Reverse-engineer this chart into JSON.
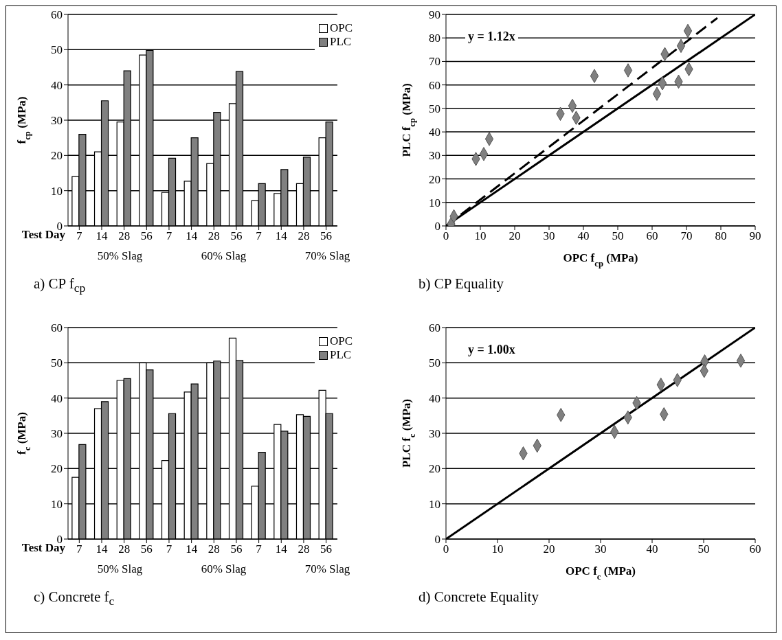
{
  "chart_data": [
    {
      "type": "bar",
      "title": "a) CP f$_{cp}$",
      "xlabel": "Test Day",
      "ylabel": "f$_{cp}$ (MPa)",
      "categories": [
        "7",
        "14",
        "28",
        "56",
        "7",
        "14",
        "28",
        "56",
        "7",
        "14",
        "28",
        "56"
      ],
      "series": [
        {
          "name": "OPC",
          "color": "#ffffff",
          "values": [
            14,
            21,
            29.5,
            48.5,
            9.5,
            12.7,
            17.7,
            34.7,
            7.2,
            9.2,
            12,
            25
          ]
        },
        {
          "name": "PLC",
          "color": "#808080",
          "values": [
            26,
            35.5,
            44,
            49.8,
            19.2,
            25,
            32.2,
            43.8,
            12,
            16,
            19.5,
            29.5
          ]
        }
      ],
      "annotations": [
        "50% Slag",
        "60% Slag",
        "70% Slag"
      ],
      "ylim": [
        0,
        60
      ],
      "yticks": [
        0,
        10,
        20,
        30,
        40,
        50,
        60
      ],
      "grid": "y",
      "legend": "top right"
    },
    {
      "type": "scatter",
      "title": "b) CP Equality",
      "xlabel": "OPC f$_{cp}$ (MPa)",
      "ylabel": "PLC f$_{cp}$ (MPa)",
      "series": [
        {
          "type": "scatter",
          "color": "#808080",
          "marker": "diamond",
          "x": [
            1.5,
            2.3,
            8.7,
            11,
            12.6,
            33.3,
            36.8,
            37.9,
            43.2,
            53,
            61.4,
            63,
            63.7,
            67.7,
            68.4,
            70.4,
            70.7
          ],
          "values": [
            0.8,
            4.1,
            28.5,
            30.6,
            37,
            47.7,
            51.1,
            46,
            63.8,
            66.2,
            56.2,
            60.7,
            73.1,
            61.4,
            76.6,
            83,
            66.7
          ]
        },
        {
          "type": "line",
          "color": "#000000",
          "line_style": "solid",
          "x": [
            0,
            90
          ],
          "values": [
            0,
            90
          ]
        },
        {
          "type": "line",
          "color": "#000000",
          "line_style": "dashed",
          "x": [
            0,
            79
          ],
          "values": [
            0,
            88.5
          ]
        }
      ],
      "annotations": [
        "y = 1.12x"
      ],
      "xlim": [
        0,
        90
      ],
      "xticks": [
        0,
        10,
        20,
        30,
        40,
        50,
        60,
        70,
        80,
        90
      ],
      "ylim": [
        0,
        90
      ],
      "yticks": [
        0,
        10,
        20,
        30,
        40,
        50,
        60,
        70,
        80,
        90
      ],
      "grid": "y"
    },
    {
      "type": "bar",
      "title": "c) Concrete f$_{c}$",
      "xlabel": "Test Day",
      "ylabel": "f$_{c}$ (MPa)",
      "categories": [
        "7",
        "14",
        "28",
        "56",
        "7",
        "14",
        "28",
        "56",
        "7",
        "14",
        "28",
        "56"
      ],
      "series": [
        {
          "name": "OPC",
          "color": "#ffffff",
          "values": [
            17.5,
            37,
            45,
            50,
            22.3,
            41.7,
            50,
            57,
            15,
            32.5,
            35.3,
            42.2
          ]
        },
        {
          "name": "PLC",
          "color": "#808080",
          "values": [
            26.8,
            39,
            45.5,
            48,
            35.6,
            44,
            50.5,
            50.7,
            24.6,
            30.6,
            34.8,
            35.6
          ]
        }
      ],
      "annotations": [
        "50% Slag",
        "60% Slag",
        "70% Slag"
      ],
      "ylim": [
        0,
        60
      ],
      "yticks": [
        0,
        10,
        20,
        30,
        40,
        50,
        60
      ],
      "grid": "y",
      "legend": "top right"
    },
    {
      "type": "scatter",
      "title": "d) Concrete Equality",
      "xlabel": "OPC f$_{c}$ (MPa)",
      "ylabel": "PLC f$_{c}$ (MPa)",
      "series": [
        {
          "type": "scatter",
          "color": "#808080",
          "marker": "diamond",
          "x": [
            15,
            17.7,
            22.3,
            32.7,
            35.3,
            37,
            41.7,
            42.3,
            44.9,
            50.2,
            50.1,
            57.2
          ],
          "values": [
            24.3,
            26.5,
            35.2,
            30.4,
            34.5,
            38.6,
            43.8,
            35.4,
            45.1,
            50.4,
            47.7,
            50.6
          ]
        },
        {
          "type": "line",
          "color": "#000000",
          "line_style": "solid",
          "x": [
            0,
            60
          ],
          "values": [
            0,
            60
          ]
        }
      ],
      "annotations": [
        "y = 1.00x"
      ],
      "xlim": [
        0,
        60
      ],
      "xticks": [
        0,
        10,
        20,
        30,
        40,
        50,
        60
      ],
      "ylim": [
        0,
        60
      ],
      "yticks": [
        0,
        10,
        20,
        30,
        40,
        50,
        60
      ],
      "grid": "y"
    }
  ]
}
